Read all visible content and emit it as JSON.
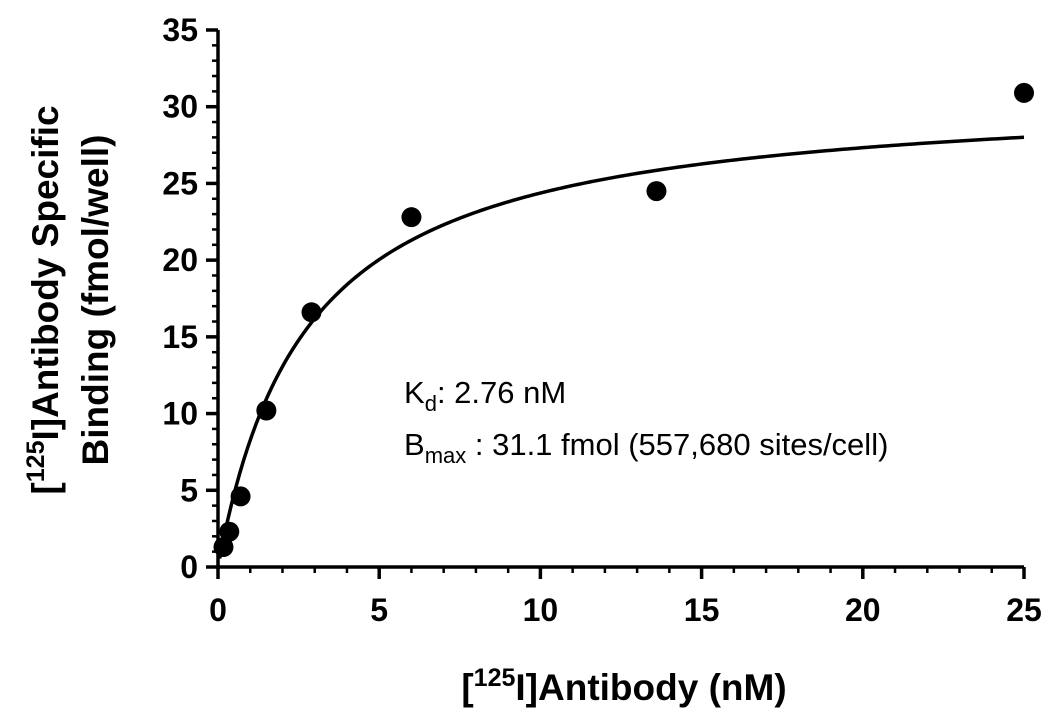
{
  "chart_data": {
    "type": "scatter",
    "x_axis": {
      "label_prefix": "[",
      "label_superscript": "125",
      "label_rest": "I]Antibody (nM)",
      "range": [
        0,
        25
      ],
      "major_ticks": [
        0,
        5,
        10,
        15,
        20,
        25
      ],
      "minor_step": 1
    },
    "y_axis": {
      "label_line1_prefix": "[",
      "label_line1_superscript": "125",
      "label_line1_rest": "I]Antibody Specific",
      "label_line2": "Binding  (fmol/well)",
      "range": [
        0,
        35
      ],
      "major_ticks": [
        0,
        5,
        10,
        15,
        20,
        25,
        30,
        35
      ],
      "minor_step": 1
    },
    "points": [
      {
        "x": 0.17,
        "y": 1.3
      },
      {
        "x": 0.35,
        "y": 2.3
      },
      {
        "x": 0.7,
        "y": 4.6
      },
      {
        "x": 1.5,
        "y": 10.2
      },
      {
        "x": 2.9,
        "y": 16.6
      },
      {
        "x": 6.0,
        "y": 22.8
      },
      {
        "x": 13.6,
        "y": 24.5
      },
      {
        "x": 25.0,
        "y": 30.9
      }
    ],
    "fit": {
      "model": "one-site saturation binding",
      "Bmax": 31.1,
      "Kd": 2.76,
      "x_range": [
        0.05,
        25
      ]
    },
    "annotations": {
      "kd_main": "K",
      "kd_sub": "d",
      "kd_text": ": 2.76 nM",
      "bmax_main": "B",
      "bmax_sub": "max",
      "bmax_text": " : 31.1 fmol (557,680 sites/cell)"
    },
    "grid": false,
    "legend": "none",
    "colors": {
      "marks": "#000000",
      "background": "#ffffff"
    }
  }
}
